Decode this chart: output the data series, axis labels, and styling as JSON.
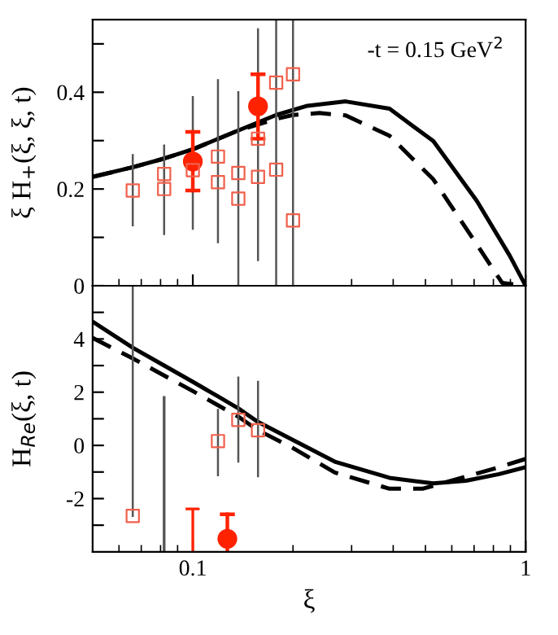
{
  "chart_data": [
    {
      "type": "line",
      "ylabel": "ξ H$_{+}$(ξ, ξ, t)",
      "annotations": [
        "-t = 0.15 GeV$^{2}$"
      ],
      "log": "x",
      "xlim": [
        0.05,
        1
      ],
      "xticks": [
        0.1,
        1
      ],
      "ylim": [
        0,
        0.55
      ],
      "yticks": [
        0,
        {
          "value": 0.1,
          "label": null
        },
        0.2,
        {
          "value": 0.3,
          "label": null
        },
        0.4,
        {
          "value": 0.5,
          "label": null
        }
      ],
      "tick_labels": "y",
      "grid": false,
      "legend": false,
      "series": [
        {
          "color": "#000000",
          "line_style": "solid",
          "marker": "none",
          "x": [
            0.05,
            0.066,
            0.082,
            0.1,
            0.137,
            0.178,
            0.221,
            0.288,
            0.39,
            0.528,
            0.714,
            0.896,
            1.0
          ],
          "values": [
            0.225,
            0.245,
            0.263,
            0.282,
            0.321,
            0.353,
            0.372,
            0.381,
            0.366,
            0.299,
            0.175,
            0.062,
            0.0
          ]
        },
        {
          "color": "#000000",
          "line_style": "dashed",
          "marker": "none",
          "x": [
            0.05,
            0.066,
            0.082,
            0.1,
            0.137,
            0.178,
            0.2,
            0.24,
            0.288,
            0.39,
            0.528,
            0.714,
            0.85,
            1.0
          ],
          "values": [
            0.225,
            0.245,
            0.263,
            0.282,
            0.321,
            0.345,
            0.353,
            0.357,
            0.352,
            0.31,
            0.22,
            0.085,
            0.006,
            0.0
          ]
        },
        {
          "type": "scatter",
          "color": "#f0604c",
          "marker": "square",
          "x": [
            0.066,
            0.082,
            0.082,
            0.1,
            0.119,
            0.119,
            0.137,
            0.137,
            0.157,
            0.157,
            0.178,
            0.178,
            0.2,
            0.2
          ],
          "values": [
            0.197,
            0.2,
            0.231,
            0.239,
            0.214,
            0.267,
            0.233,
            0.18,
            0.225,
            0.304,
            0.24,
            0.42,
            0.135,
            0.437
          ],
          "errors": [
            [
              0.125,
              0.27
            ],
            [
              0.107,
              0.29
            ],
            null,
            [
              0.118,
              0.39
            ],
            [
              0.09,
              0.425
            ],
            null,
            [
              0,
              0.4
            ],
            null,
            [
              0.053,
              0.53
            ],
            null,
            [
              0,
              0.55
            ],
            null,
            [
              0,
              0.55
            ],
            null
          ]
        },
        {
          "type": "scatter",
          "color": "#ff2200",
          "marker": "circle",
          "x": [
            0.1,
            0.157
          ],
          "values": [
            0.257,
            0.371
          ],
          "errors": [
            [
              0.197,
              0.318
            ],
            [
              0.304,
              0.437
            ]
          ]
        }
      ]
    },
    {
      "type": "line",
      "xlabel": "ξ",
      "ylabel": "H$_{Re}$(ξ, t)",
      "log": "x",
      "xlim": [
        0.05,
        1
      ],
      "xticks": [
        0.1,
        1
      ],
      "ylim": [
        -4,
        6
      ],
      "yticks": [
        {
          "value": -3,
          "label": null
        },
        -2,
        {
          "value": -1,
          "label": null
        },
        0,
        {
          "value": 1,
          "label": null
        },
        2,
        {
          "value": 3,
          "label": null
        },
        4,
        {
          "value": 5,
          "label": null
        }
      ],
      "grid": false,
      "legend": false,
      "series": [
        {
          "color": "#000000",
          "line_style": "solid",
          "marker": "none",
          "x": [
            0.05,
            0.066,
            0.082,
            0.1,
            0.119,
            0.137,
            0.157,
            0.2,
            0.267,
            0.39,
            0.528,
            0.662,
            0.832,
            1.0
          ],
          "values": [
            4.65,
            3.67,
            3.0,
            2.39,
            1.84,
            1.39,
            0.88,
            0.2,
            -0.61,
            -1.22,
            -1.43,
            -1.33,
            -1.08,
            -0.82
          ]
        },
        {
          "color": "#000000",
          "line_style": "dashed",
          "marker": "none",
          "x": [
            0.05,
            0.066,
            0.1,
            0.137,
            0.157,
            0.2,
            0.267,
            0.39,
            0.49,
            0.614,
            0.832,
            1.0
          ],
          "values": [
            4.04,
            3.27,
            2.04,
            1.08,
            0.57,
            -0.1,
            -1.02,
            -1.63,
            -1.63,
            -1.29,
            -0.82,
            -0.51
          ]
        },
        {
          "type": "scatter",
          "color": "#f0604c",
          "marker": "square",
          "x": [
            0.066,
            0.119,
            0.137,
            0.157
          ],
          "values": [
            -2.65,
            0.16,
            0.96,
            0.57
          ],
          "errors": [
            [
              -2.65,
              6
            ],
            [
              -1.12,
              1.33
            ],
            [
              -0.61,
              2.55
            ],
            [
              -1.16,
              2.39
            ]
          ]
        },
        {
          "type": "line",
          "color": "#555555",
          "line_style": "solid",
          "marker": "none",
          "x": [
            0.082,
            0.082
          ],
          "values": [
            -4,
            1.8
          ]
        },
        {
          "type": "line",
          "color": "#ff2200",
          "line_style": "solid",
          "marker": "none",
          "x": [
            0.096,
            0.104,
            0.1,
            0.1
          ],
          "values": [
            -2.39,
            -2.39,
            -2.39,
            -4
          ]
        },
        {
          "type": "scatter",
          "color": "#ff2200",
          "marker": "circle",
          "x": [
            0.127
          ],
          "values": [
            -3.51
          ],
          "errors": [
            [
              -4,
              -2.59
            ]
          ]
        }
      ]
    }
  ]
}
